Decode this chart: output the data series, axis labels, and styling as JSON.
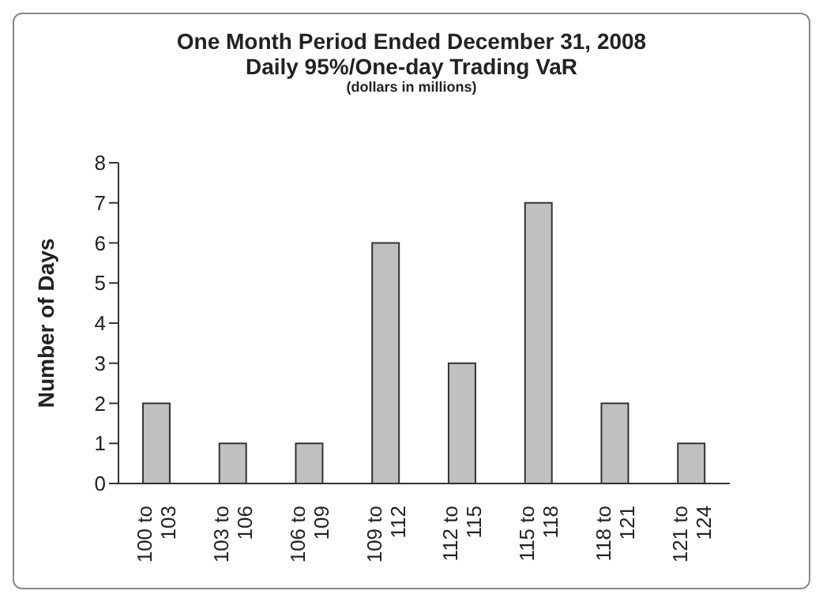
{
  "chart_data": {
    "type": "bar",
    "title": "One Month Period Ended December 31, 2008",
    "subtitle": "Daily 95%/One-day Trading VaR",
    "annotations": [
      "(dollars in millions)"
    ],
    "ylabel": "Number of Days",
    "categories": [
      "100 to 103",
      "103 to 106",
      "106 to 109",
      "109 to 112",
      "112 to 115",
      "115 to 118",
      "118 to 121",
      "121 to 124"
    ],
    "values": [
      2,
      1,
      1,
      6,
      3,
      7,
      2,
      1
    ],
    "color": "#c0c0c0",
    "ylim": [
      0,
      8
    ],
    "yticks": [
      0,
      1,
      2,
      3,
      4,
      5,
      6,
      7,
      8
    ],
    "grid": false,
    "legend": false
  }
}
